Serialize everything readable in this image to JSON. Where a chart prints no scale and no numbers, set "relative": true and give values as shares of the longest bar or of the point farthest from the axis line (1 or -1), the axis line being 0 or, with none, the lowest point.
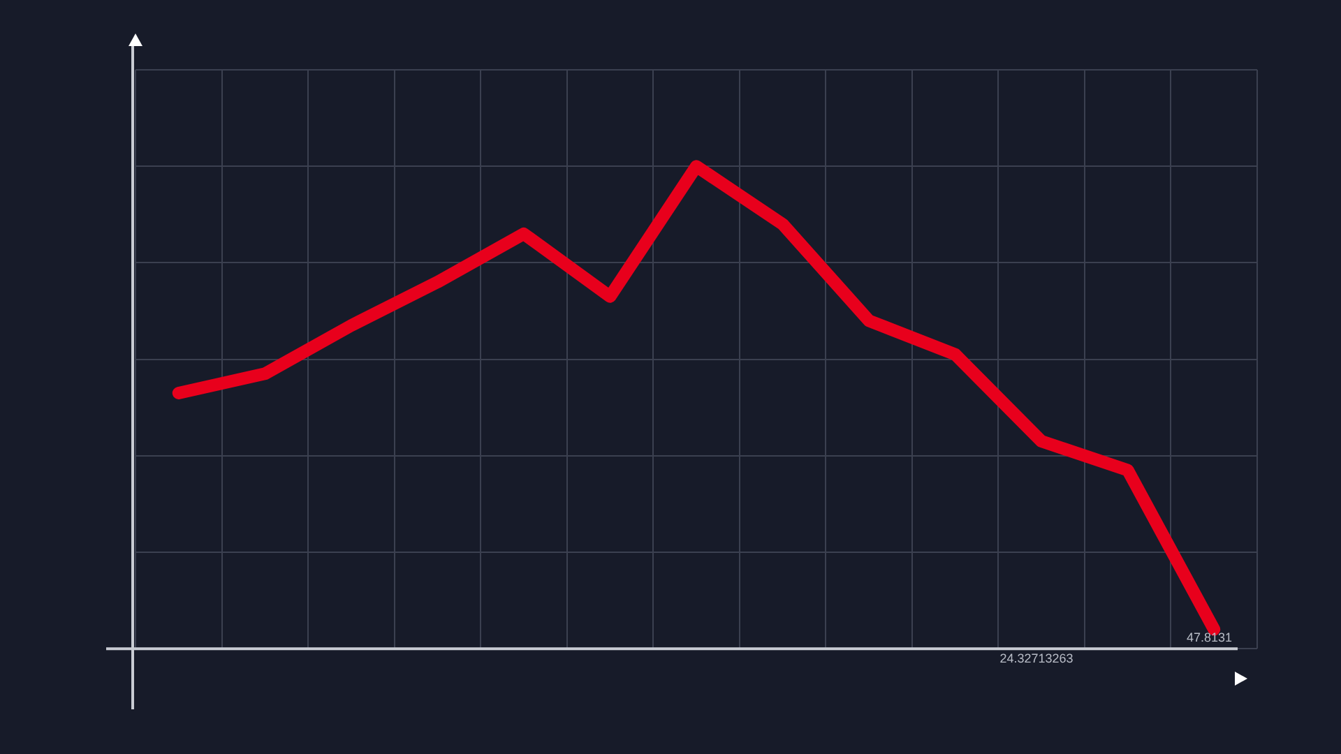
{
  "chart_data": {
    "type": "line",
    "relative": true,
    "grid": true,
    "legend": false,
    "marker": "none",
    "line_style": "solid",
    "categories": [
      null,
      null,
      null,
      null,
      null,
      null,
      null,
      null,
      null,
      null,
      null,
      null,
      null
    ],
    "series": [
      {
        "color": "#e8001c",
        "values": [
          0.53,
          0.57,
          0.67,
          0.76,
          0.86,
          0.73,
          1,
          0.88,
          0.68,
          0.61,
          0.43,
          0.37,
          0.04
        ]
      }
    ],
    "annotations": [
      "24.32713263",
      "47.8131"
    ]
  }
}
